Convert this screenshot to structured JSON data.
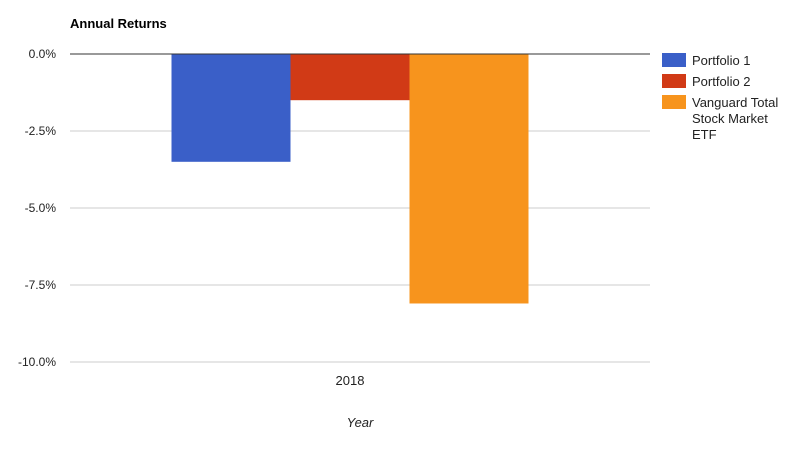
{
  "chart_data": {
    "type": "bar",
    "title": "Annual Returns",
    "xlabel": "Year",
    "ylabel": "",
    "categories": [
      "2018"
    ],
    "series": [
      {
        "name": "Portfolio 1",
        "color": "#3a5fc8",
        "values": [
          -3.5
        ]
      },
      {
        "name": "Portfolio 2",
        "color": "#d13a16",
        "values": [
          -1.5
        ]
      },
      {
        "name": "Vanguard Total Stock Market ETF",
        "color": "#f7941d",
        "values": [
          -8.1
        ]
      }
    ],
    "ylim": [
      -10,
      0
    ],
    "yticks": [
      0,
      -2.5,
      -5,
      -7.5,
      -10
    ],
    "ytick_labels": [
      "0.0%",
      "-2.5%",
      "-5.0%",
      "-7.5%",
      "-10.0%"
    ],
    "grid": true,
    "legend_position": "right"
  }
}
